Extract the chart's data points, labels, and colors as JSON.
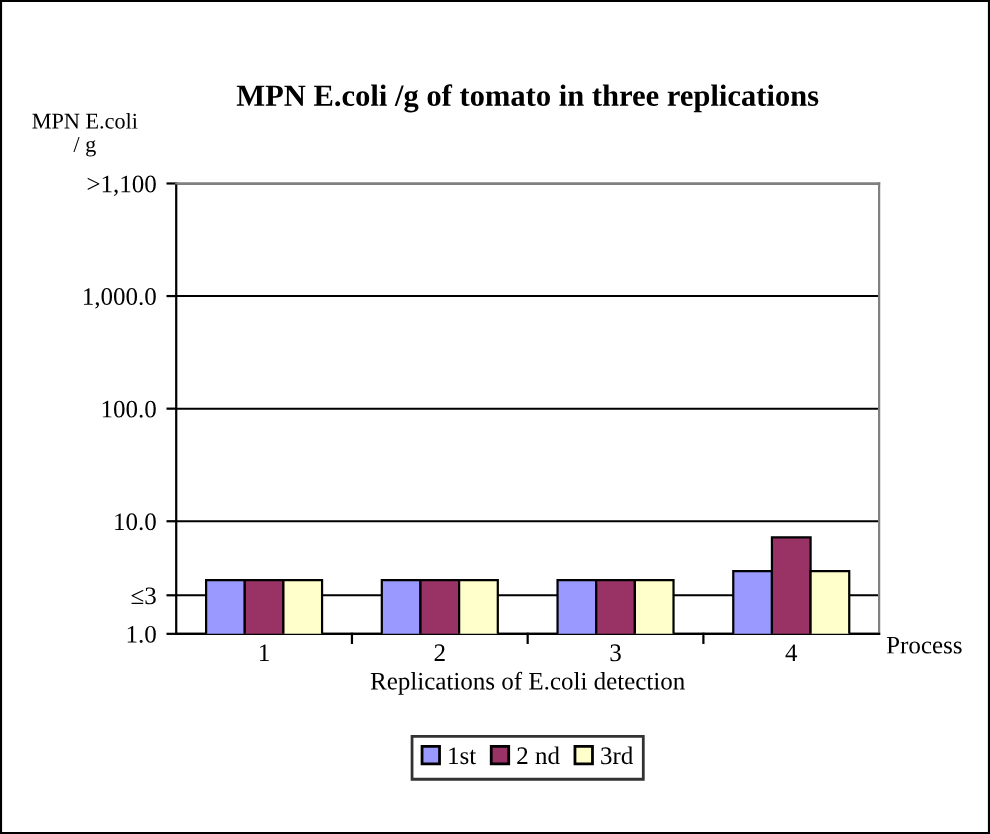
{
  "chart_data": {
    "type": "bar",
    "title": "MPN E.coli /g of tomato in three replications",
    "xlabel": "Replications of E.coli detection",
    "ylabel": "MPN E.coli\n/ g",
    "annotations": [
      "Process"
    ],
    "categories": [
      "1",
      "2",
      "3",
      "4"
    ],
    "series": [
      {
        "name": "1st",
        "color": "#9999ff",
        "values": [
          3,
          3,
          3,
          3.6
        ]
      },
      {
        "name": "2 nd",
        "color": "#993366",
        "values": [
          3,
          3,
          3,
          7.2
        ]
      },
      {
        "name": "3rd",
        "color": "#ffffcc",
        "values": [
          3,
          3,
          3,
          3.6
        ]
      }
    ],
    "log": "y",
    "ylim": [
      1,
      10000
    ],
    "yticks": [
      {
        "value": 1,
        "label": "1.0"
      },
      {
        "value": 2.2,
        "label": "≤3"
      },
      {
        "value": 10,
        "label": "10.0"
      },
      {
        "value": 100,
        "label": "100.0"
      },
      {
        "value": 1000,
        "label": "1,000.0"
      },
      {
        "value": 10000,
        "label": ">1,100"
      }
    ],
    "grid": "y",
    "legend": "bottom"
  }
}
